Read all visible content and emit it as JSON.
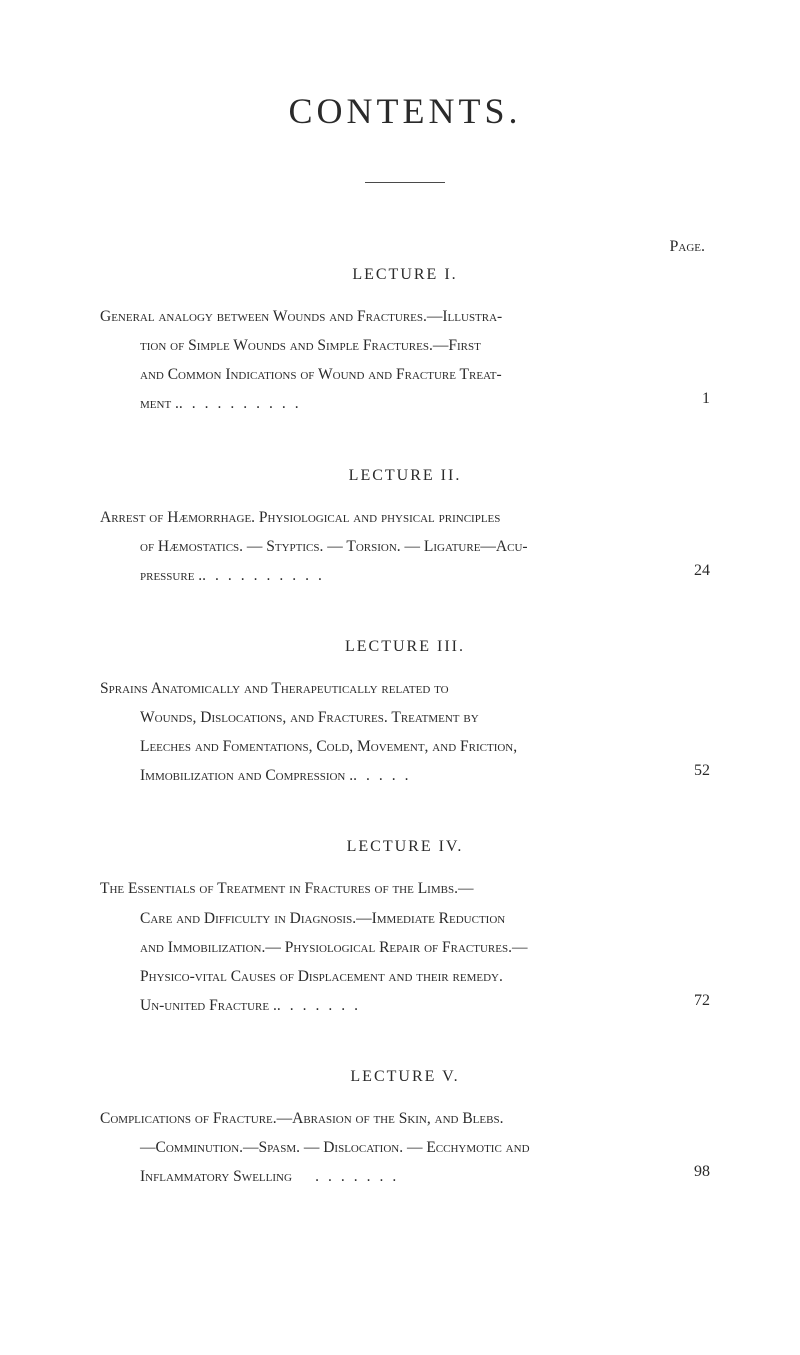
{
  "title": "CONTENTS.",
  "pageLabel": "Page.",
  "lectures": [
    {
      "heading": "LECTURE I.",
      "line1": "General analogy between Wounds and Fractures.—Illustra-",
      "line2": "tion of Simple Wounds and Simple Fractures.—First",
      "line3": "and Common Indications of Wound and Fracture Treat-",
      "line4": "ment .",
      "dots": "..........",
      "page": "1"
    },
    {
      "heading": "LECTURE II.",
      "line1": "Arrest of Hæmorrhage.   Physiological and physical principles",
      "line2": "of Hæmostatics. — Styptics. — Torsion. — Ligature—Acu-",
      "line3": "pressure .",
      "dots": "..........",
      "page": "24"
    },
    {
      "heading": "LECTURE III.",
      "line1": "Sprains  Anatomically  and  Therapeutically  related  to",
      "line2": "Wounds,  Dislocations,  and  Fractures.   Treatment  by",
      "line3": "Leeches and Fomentations, Cold, Movement, and Friction,",
      "line4": "Immobilization and Compression .",
      "dots": ".....",
      "page": "52"
    },
    {
      "heading": "LECTURE IV.",
      "line1": "The Essentials of Treatment in Fractures of the Limbs.—",
      "line2": "Care and Difficulty in Diagnosis.—Immediate Reduction",
      "line3": "and Immobilization.— Physiological Repair of Fractures.—",
      "line4": "Physico-vital Causes of Displacement and their remedy.",
      "line5": "Un-united Fracture   .",
      "dots": ".......",
      "page": "72"
    },
    {
      "heading": "LECTURE V.",
      "line1": "Complications of Fracture.—Abrasion of the Skin, and Blebs.",
      "line2": "—Comminution.—Spasm. — Dislocation. — Ecchymotic  and",
      "line3": "Inflammatory Swelling",
      "dots": ".......",
      "page": "98"
    }
  ],
  "style": {
    "background": "#ffffff",
    "textColor": "#2a2a2a",
    "titleFontSize": 36,
    "bodyFontSize": 15.5,
    "lineHeight": 1.88
  }
}
